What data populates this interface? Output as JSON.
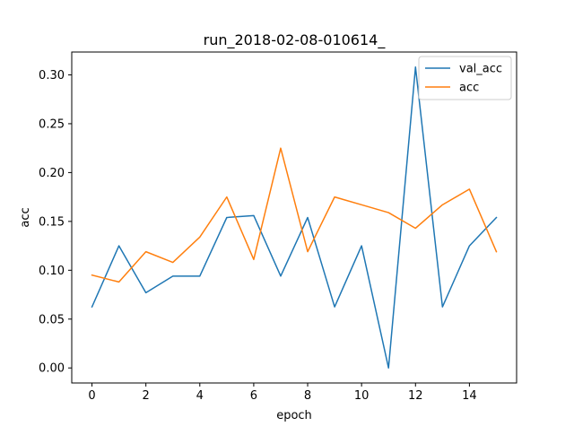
{
  "chart_data": {
    "type": "line",
    "title": "run_2018-02-08-010614_",
    "xlabel": "epoch",
    "ylabel": "acc",
    "xlim": [
      -0.75,
      15.75
    ],
    "ylim": [
      -0.0154,
      0.3234
    ],
    "grid": false,
    "legend_position": "top-right",
    "x": [
      0,
      1,
      2,
      3,
      4,
      5,
      6,
      7,
      8,
      9,
      10,
      11,
      12,
      13,
      14,
      15
    ],
    "xticks": [
      {
        "value": 0,
        "label": "0"
      },
      {
        "value": 2,
        "label": "2"
      },
      {
        "value": 4,
        "label": "4"
      },
      {
        "value": 6,
        "label": "6"
      },
      {
        "value": 8,
        "label": "8"
      },
      {
        "value": 10,
        "label": "10"
      },
      {
        "value": 12,
        "label": "12"
      },
      {
        "value": 14,
        "label": "14"
      }
    ],
    "yticks": [
      {
        "value": 0.0,
        "label": "0.00"
      },
      {
        "value": 0.05,
        "label": "0.05"
      },
      {
        "value": 0.1,
        "label": "0.10"
      },
      {
        "value": 0.15,
        "label": "0.15"
      },
      {
        "value": 0.2,
        "label": "0.20"
      },
      {
        "value": 0.25,
        "label": "0.25"
      },
      {
        "value": 0.3,
        "label": "0.30"
      }
    ],
    "series": [
      {
        "name": "val_acc",
        "color": "#1f77b4",
        "values": [
          0.0625,
          0.125,
          0.077,
          0.094,
          0.094,
          0.154,
          0.156,
          0.094,
          0.154,
          0.0625,
          0.125,
          0.0,
          0.308,
          0.0625,
          0.125,
          0.154
        ]
      },
      {
        "name": "acc",
        "color": "#ff7f0e",
        "values": [
          0.095,
          0.088,
          0.119,
          0.108,
          0.134,
          0.175,
          0.111,
          0.225,
          0.119,
          0.175,
          0.167,
          0.159,
          0.143,
          0.167,
          0.183,
          0.119
        ]
      }
    ]
  }
}
